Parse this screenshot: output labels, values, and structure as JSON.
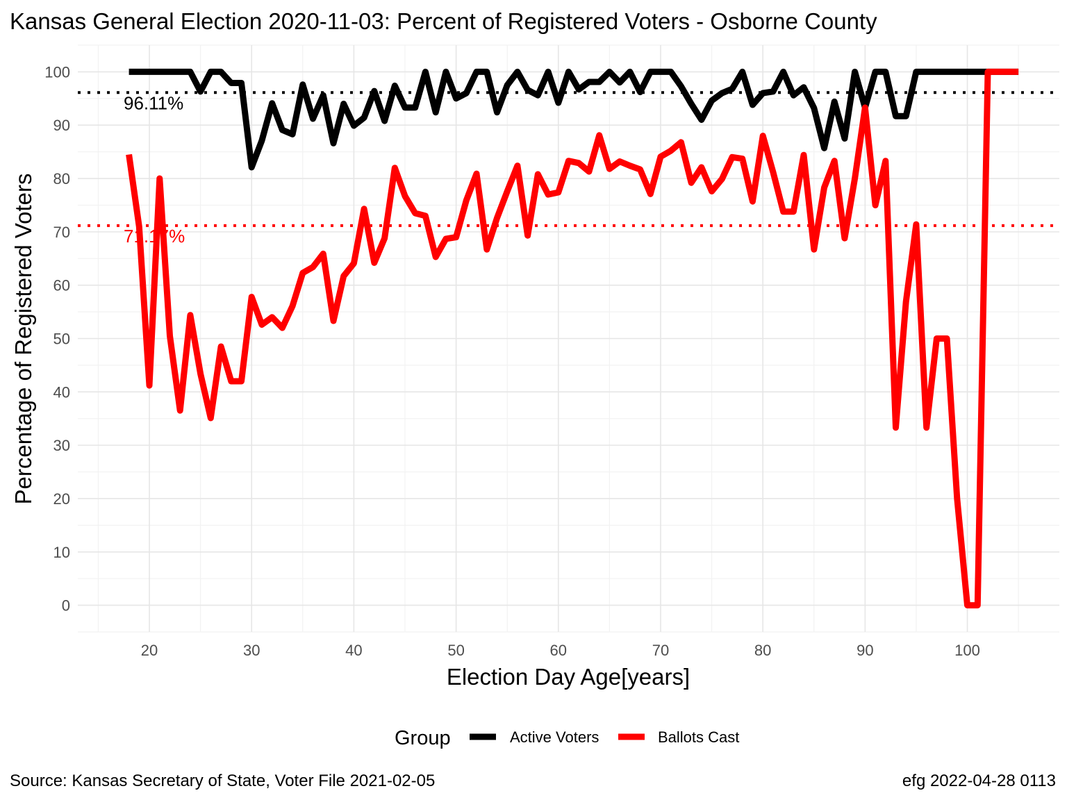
{
  "title": "Kansas General Election 2020-11-03:  Percent of Registered Voters - Osborne County",
  "caption_left": "Source:  Kansas Secretary of State, Voter File  2021-02-05",
  "caption_right": "efg 2022-04-28 0113",
  "chart_data": {
    "type": "line",
    "xlabel": "Election Day Age[years]",
    "ylabel": "Percentage of Registered Voters",
    "xlim": [
      13,
      109
    ],
    "ylim": [
      -5,
      105
    ],
    "x_ticks": [
      20,
      30,
      40,
      50,
      60,
      70,
      80,
      90,
      100
    ],
    "y_ticks": [
      0,
      10,
      20,
      30,
      40,
      50,
      60,
      70,
      80,
      90,
      100
    ],
    "grid": true,
    "legend": {
      "title": "Group",
      "placement": "bottom"
    },
    "x": [
      18,
      19,
      20,
      21,
      22,
      23,
      24,
      25,
      26,
      27,
      28,
      29,
      30,
      31,
      32,
      33,
      34,
      35,
      36,
      37,
      38,
      39,
      40,
      41,
      42,
      43,
      44,
      45,
      46,
      47,
      48,
      49,
      50,
      51,
      52,
      53,
      54,
      55,
      56,
      57,
      58,
      59,
      60,
      61,
      62,
      63,
      64,
      65,
      66,
      67,
      68,
      69,
      70,
      71,
      72,
      73,
      74,
      75,
      76,
      77,
      78,
      79,
      80,
      81,
      82,
      83,
      84,
      85,
      86,
      87,
      88,
      89,
      90,
      91,
      92,
      93,
      94,
      95,
      96,
      97,
      98,
      99,
      100,
      101,
      102,
      103,
      104,
      105
    ],
    "series": [
      {
        "name": "Active Voters",
        "color": "#000000",
        "values": [
          100,
          100,
          100,
          100,
          100,
          100,
          100,
          96.3,
          100,
          100,
          97.9,
          97.9,
          82.1,
          87.1,
          94.1,
          89.1,
          88.3,
          97.6,
          91.2,
          95.6,
          86.6,
          94.0,
          89.9,
          91.4,
          96.4,
          90.8,
          97.4,
          93.3,
          93.3,
          100,
          92.4,
          100,
          95.0,
          96.0,
          100,
          100,
          92.4,
          97.5,
          100,
          96.6,
          95.6,
          100,
          94.2,
          100,
          96.7,
          98.1,
          98.1,
          100,
          98.0,
          100,
          96.2,
          100,
          100,
          100,
          97.3,
          94.0,
          91.0,
          94.6,
          96.0,
          96.8,
          100,
          93.8,
          96.0,
          96.3,
          100,
          95.6,
          97.1,
          93.2,
          85.7,
          94.4,
          87.5,
          100,
          93.3,
          100,
          100,
          91.7,
          91.7,
          100,
          100,
          100,
          100,
          100,
          100,
          100,
          100,
          100,
          100,
          100
        ]
      },
      {
        "name": "Ballots Cast",
        "color": "#ff0000",
        "values": [
          84.5,
          71.0,
          41.2,
          80.0,
          50.5,
          36.5,
          54.4,
          43.4,
          35.1,
          48.5,
          42.0,
          42.0,
          57.8,
          52.6,
          54.0,
          52.0,
          56.1,
          62.3,
          63.4,
          65.9,
          53.3,
          61.7,
          64.1,
          74.3,
          64.2,
          68.8,
          82.0,
          76.7,
          73.5,
          73.0,
          65.3,
          68.7,
          69.0,
          75.9,
          80.9,
          66.7,
          72.6,
          77.6,
          82.4,
          69.3,
          80.8,
          77.0,
          77.4,
          83.3,
          82.9,
          81.3,
          88.1,
          81.8,
          83.2,
          82.4,
          81.7,
          77.1,
          84.1,
          85.2,
          86.8,
          79.2,
          82.1,
          77.6,
          79.9,
          84.0,
          83.7,
          75.7,
          88.0,
          81.2,
          73.8,
          73.8,
          84.4,
          66.7,
          78.3,
          83.3,
          68.8,
          80.0,
          93.3,
          75.0,
          83.3,
          33.3,
          56.9,
          71.4,
          33.3,
          50.0,
          50.0,
          20.0,
          0,
          0,
          100,
          100,
          100,
          100
        ]
      }
    ],
    "reference_lines": [
      {
        "series": "Active Voters",
        "value": 96.11,
        "label": "96.11%",
        "color": "#000000"
      },
      {
        "series": "Ballots Cast",
        "value": 71.17,
        "label": "71.17%",
        "color": "#ff0000"
      }
    ]
  }
}
